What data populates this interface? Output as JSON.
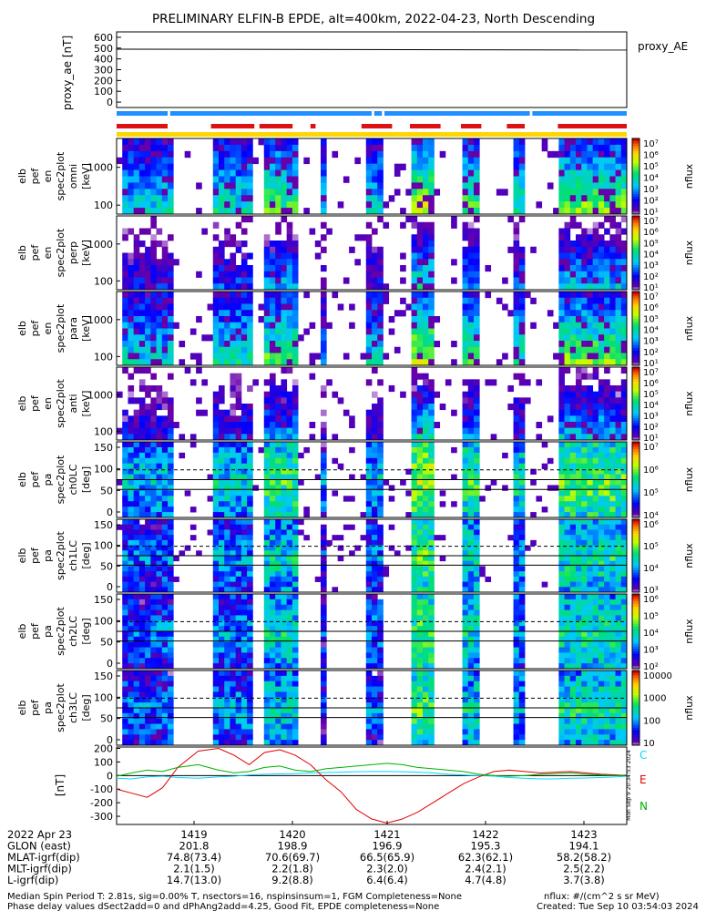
{
  "title": "PRELIMINARY ELFIN-B EPDE, alt=400km, 2022-04-23, North Descending",
  "colors": {
    "ae_line": "#000000",
    "bar_blue": "#1e90ff",
    "bar_red": "#dd1111",
    "bar_yellow": "#ffd700",
    "comp_C": "#00d8ff",
    "comp_E": "#e00000",
    "comp_N": "#00b000"
  },
  "chart_data": [
    {
      "type": "line",
      "panel": "proxy_ae",
      "ylabel": "proxy_ae [nT]",
      "right_label": "proxy_AE",
      "ylim": [
        -50,
        650
      ],
      "yticks": [
        "600",
        "500",
        "400",
        "300",
        "200",
        "100",
        "0"
      ],
      "x": [
        0,
        1
      ],
      "values": [
        490,
        482
      ]
    },
    {
      "type": "heatmap",
      "panel": "energy_omni",
      "ylabel": [
        "elb",
        "pef",
        "en",
        "spec2plot",
        "omni",
        "[keV]"
      ],
      "yticks": [
        "1000",
        "100"
      ],
      "colorbar_label": "nflux",
      "colorbar_ticks": [
        "10⁷",
        "10⁶",
        "10⁵",
        "10⁴",
        "10³",
        "10²",
        "10¹"
      ]
    },
    {
      "type": "heatmap",
      "panel": "energy_perp",
      "ylabel": [
        "elb",
        "pef",
        "en",
        "spec2plot",
        "perp",
        "[keV]"
      ],
      "yticks": [
        "1000",
        "100"
      ],
      "colorbar_label": "nflux",
      "colorbar_ticks": [
        "10⁷",
        "10⁶",
        "10⁵",
        "10⁴",
        "10³",
        "10²",
        "10¹"
      ]
    },
    {
      "type": "heatmap",
      "panel": "energy_para",
      "ylabel": [
        "elb",
        "pef",
        "en",
        "spec2plot",
        "para",
        "[keV]"
      ],
      "yticks": [
        "1000",
        "100"
      ],
      "colorbar_label": "nflux",
      "colorbar_ticks": [
        "10⁷",
        "10⁶",
        "10⁵",
        "10⁴",
        "10³",
        "10²",
        "10¹"
      ]
    },
    {
      "type": "heatmap",
      "panel": "energy_anti",
      "ylabel": [
        "elb",
        "pef",
        "en",
        "spec2plot",
        "anti",
        "[keV]"
      ],
      "yticks": [
        "1000",
        "100"
      ],
      "colorbar_label": "nflux",
      "colorbar_ticks": [
        "10⁷",
        "10⁶",
        "10⁵",
        "10⁴",
        "10³",
        "10²",
        "10¹"
      ]
    },
    {
      "type": "heatmap",
      "panel": "pa_ch0LC",
      "ylabel": [
        "elb",
        "pef",
        "pa",
        "spec2plot",
        "ch0LC",
        "[deg]"
      ],
      "yticks": [
        "150",
        "100",
        "50",
        "0"
      ],
      "colorbar_label": "nflux",
      "colorbar_ticks": [
        "10⁷",
        "10⁶",
        "10⁵",
        "10⁴"
      ]
    },
    {
      "type": "heatmap",
      "panel": "pa_ch1LC",
      "ylabel": [
        "elb",
        "pef",
        "pa",
        "spec2plot",
        "ch1LC",
        "[deg]"
      ],
      "yticks": [
        "150",
        "100",
        "50",
        "0"
      ],
      "colorbar_label": "nflux",
      "colorbar_ticks": [
        "10⁶",
        "10⁵",
        "10⁴",
        "10³"
      ]
    },
    {
      "type": "heatmap",
      "panel": "pa_ch2LC",
      "ylabel": [
        "elb",
        "pef",
        "pa",
        "spec2plot",
        "ch2LC",
        "[deg]"
      ],
      "yticks": [
        "150",
        "100",
        "50",
        "0"
      ],
      "colorbar_label": "nflux",
      "colorbar_ticks": [
        "10⁶",
        "10⁵",
        "10⁴",
        "10³",
        "10²"
      ]
    },
    {
      "type": "heatmap",
      "panel": "pa_ch3LC",
      "ylabel": [
        "elb",
        "pef",
        "pa",
        "spec2plot",
        "ch3LC",
        "[deg]"
      ],
      "yticks": [
        "150",
        "100",
        "50",
        "0"
      ],
      "colorbar_label": "nflux",
      "colorbar_ticks": [
        "10000",
        "1000",
        "100",
        "10"
      ]
    },
    {
      "type": "line",
      "panel": "field_residuals",
      "ylabel": "[nT]",
      "yticks": [
        "200",
        "100",
        "0",
        "-100",
        "-200",
        "-300"
      ],
      "ylim": [
        -360,
        210
      ],
      "legend": [
        "C",
        "E",
        "N"
      ],
      "x": [
        0,
        0.03,
        0.06,
        0.09,
        0.12,
        0.16,
        0.2,
        0.23,
        0.26,
        0.29,
        0.32,
        0.35,
        0.38,
        0.41,
        0.44,
        0.47,
        0.5,
        0.53,
        0.56,
        0.59,
        0.62,
        0.65,
        0.68,
        0.71,
        0.74,
        0.77,
        0.8,
        0.83,
        0.86,
        0.89,
        0.92,
        0.95,
        0.98,
        1.0
      ],
      "series": [
        {
          "name": "C",
          "values": [
            -20,
            -25,
            -10,
            -5,
            -15,
            -20,
            -10,
            -5,
            5,
            10,
            12,
            15,
            20,
            22,
            25,
            28,
            30,
            30,
            28,
            25,
            20,
            10,
            5,
            0,
            -5,
            -15,
            -20,
            -25,
            -25,
            -20,
            -18,
            -15,
            -10,
            -5
          ]
        },
        {
          "name": "E",
          "values": [
            -100,
            -130,
            -160,
            -90,
            60,
            180,
            200,
            150,
            80,
            170,
            190,
            150,
            80,
            -30,
            -120,
            -250,
            -320,
            -350,
            -320,
            -270,
            -200,
            -130,
            -60,
            -10,
            30,
            40,
            30,
            20,
            25,
            30,
            20,
            10,
            5,
            0
          ]
        },
        {
          "name": "N",
          "values": [
            -5,
            20,
            40,
            30,
            60,
            80,
            40,
            20,
            30,
            60,
            70,
            40,
            30,
            50,
            60,
            70,
            80,
            90,
            80,
            60,
            50,
            40,
            30,
            10,
            0,
            -5,
            0,
            10,
            15,
            20,
            10,
            5,
            0,
            5
          ]
        }
      ],
      "side_text": "Mon Sep 9 20:34:53 2024"
    }
  ],
  "axis_rows": {
    "labels": [
      "2022 Apr 23",
      "GLON (east)",
      "MLAT-igrf(dip)",
      "MLT-igrf(dip)",
      "L-igrf(dip)"
    ],
    "columns": [
      [
        "1419",
        "201.8",
        "74.8(73.4)",
        "2.1(1.5)",
        "14.7(13.0)"
      ],
      [
        "1420",
        "198.9",
        "70.6(69.7)",
        "2.2(1.8)",
        "9.2(8.8)"
      ],
      [
        "1421",
        "196.9",
        "66.5(65.9)",
        "2.3(2.0)",
        "6.4(6.4)"
      ],
      [
        "1422",
        "195.3",
        "62.3(62.1)",
        "2.4(2.1)",
        "4.7(4.8)"
      ],
      [
        "1423",
        "194.1",
        "58.2(58.2)",
        "2.5(2.2)",
        "3.7(3.8)"
      ]
    ]
  },
  "footer": {
    "line1": "Median Spin Period T: 2.81s, sig=0.00% T, nsectors=16, nspinsinsum=1, FGM Completeness=None",
    "line2": "Phase delay values dSect2add=0 and dPhAng2add=4.25, Good Fit, EPDE completeness=None",
    "units": "nflux: #/(cm^2 s sr MeV)",
    "created": "Created: Tue Sep 10 03:54:03 2024"
  }
}
